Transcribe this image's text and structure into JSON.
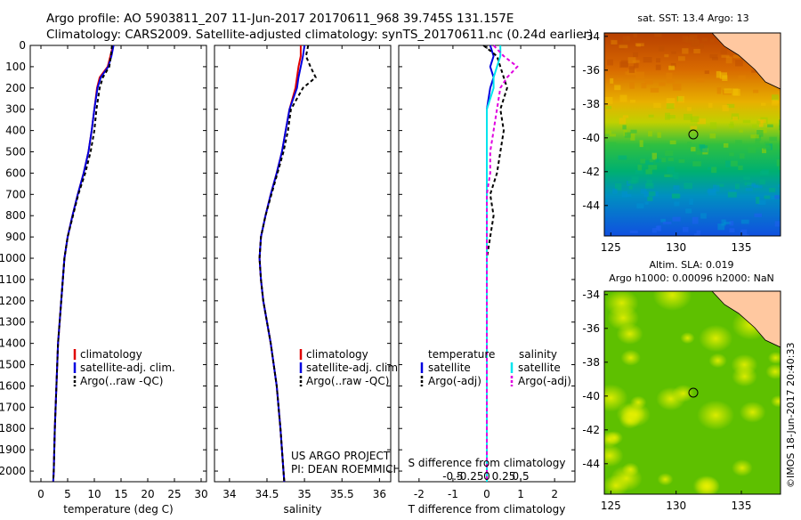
{
  "header": {
    "line1": "Argo profile: AO 5903811_207 11-Jun-2017 20170611_968 39.745S 131.157E",
    "line2": "Climatology: CARS2009. Satellite-adjusted climatology: synTS_20170611.nc (0.24d earlier)"
  },
  "colors": {
    "climatology": "#e00000",
    "satellite": "#0000e0",
    "argo": "#000000",
    "satellite_salinity": "#00e5ee",
    "argo_salinity": "#e000e0"
  },
  "chart_data": [
    {
      "type": "line",
      "name": "temperature-profile",
      "xlabel": "temperature (deg C)",
      "ylabel": "",
      "xlim": [
        -2,
        31
      ],
      "ylim": [
        2050,
        0
      ],
      "xticks": [
        0,
        5,
        10,
        15,
        20,
        25,
        30
      ],
      "yticks": [
        0,
        100,
        200,
        300,
        400,
        500,
        600,
        700,
        800,
        900,
        1000,
        1100,
        1200,
        1300,
        1400,
        1500,
        1600,
        1700,
        1800,
        1900,
        2000
      ],
      "depth": [
        0,
        50,
        100,
        150,
        200,
        300,
        400,
        500,
        600,
        700,
        800,
        900,
        1000,
        1200,
        1400,
        1600,
        1800,
        2000,
        2050
      ],
      "series": [
        {
          "name": "climatology",
          "values": [
            13.5,
            13.0,
            12.5,
            11.0,
            10.5,
            10.0,
            9.5,
            8.9,
            8.0,
            6.9,
            5.9,
            5.0,
            4.4,
            3.8,
            3.2,
            2.9,
            2.6,
            2.4,
            2.3
          ]
        },
        {
          "name": "satellite-adj. clim.",
          "values": [
            13.6,
            13.2,
            12.6,
            11.2,
            10.6,
            10.0,
            9.5,
            8.9,
            8.0,
            6.9,
            5.9,
            5.0,
            4.4,
            3.8,
            3.2,
            2.9,
            2.6,
            2.4,
            2.3
          ]
        },
        {
          "name": "Argo(..raw -QC)",
          "values": [
            13.3,
            13.1,
            12.8,
            11.6,
            11.0,
            10.4,
            10.0,
            9.3,
            8.3,
            7.0,
            6.0,
            5.0,
            4.4,
            3.8,
            3.2,
            2.9,
            2.6,
            2.4,
            2.3
          ]
        }
      ],
      "legend": [
        "climatology",
        "satellite-adj. clim.",
        "Argo(..raw -QC)"
      ]
    },
    {
      "type": "line",
      "name": "salinity-profile",
      "xlabel": "salinity",
      "ylabel": "",
      "xlim": [
        33.8,
        36.15
      ],
      "ylim": [
        2050,
        0
      ],
      "xticks": [
        34,
        34.5,
        35,
        35.5,
        36
      ],
      "depth": [
        0,
        50,
        100,
        150,
        200,
        300,
        400,
        500,
        600,
        700,
        800,
        900,
        1000,
        1100,
        1200,
        1400,
        1600,
        1800,
        2000,
        2050
      ],
      "series": [
        {
          "name": "climatology",
          "values": [
            34.95,
            34.95,
            34.92,
            34.9,
            34.88,
            34.8,
            34.75,
            34.7,
            34.63,
            34.55,
            34.48,
            34.42,
            34.4,
            34.42,
            34.45,
            34.55,
            34.63,
            34.68,
            34.72,
            34.73
          ]
        },
        {
          "name": "satellite-adj. clim.",
          "values": [
            35.0,
            34.98,
            34.95,
            34.92,
            34.9,
            34.8,
            34.75,
            34.7,
            34.63,
            34.55,
            34.48,
            34.42,
            34.4,
            34.42,
            34.45,
            34.55,
            34.63,
            34.68,
            34.72,
            34.73
          ]
        },
        {
          "name": "Argo(..raw -QC)",
          "values": [
            35.05,
            35.02,
            35.08,
            35.15,
            34.98,
            34.82,
            34.78,
            34.72,
            34.64,
            34.56,
            34.48,
            34.42,
            34.4,
            34.42,
            34.45,
            34.55,
            34.63,
            34.68,
            34.72,
            34.73
          ]
        }
      ],
      "legend": [
        "climatology",
        "satellite-adj. clim.",
        "Argo(..raw -QC)"
      ],
      "annotation": [
        "US ARGO PROJECT",
        "PI: DEAN ROEMMICH"
      ]
    },
    {
      "type": "line",
      "name": "difference-profile",
      "xlabel": "T difference from climatology",
      "top_label": "S difference from climatology",
      "xlim": [
        -2.6,
        2.6
      ],
      "ylim": [
        2050,
        0
      ],
      "xticks": [
        -2,
        -1,
        0,
        1,
        2
      ],
      "s_ticks": [
        "-0.5",
        "-0.25",
        "0",
        "0.25",
        "0.5"
      ],
      "depth": [
        0,
        50,
        100,
        150,
        200,
        300,
        400,
        500,
        600,
        700,
        800,
        900,
        1000,
        1200,
        1400,
        1600,
        1800,
        2000,
        2050
      ],
      "series": [
        {
          "name": "temperature satellite",
          "values": [
            0.1,
            0.2,
            0.1,
            0.2,
            0.1,
            0.0,
            0.0,
            0.0,
            0.0,
            0.0,
            0.0,
            0.0,
            0.0,
            0.0,
            0.0,
            0.0,
            0.0,
            0.0,
            0.0
          ]
        },
        {
          "name": "temperature Argo(-adj)",
          "values": [
            -0.1,
            0.3,
            0.4,
            0.5,
            0.6,
            0.4,
            0.5,
            0.4,
            0.3,
            0.1,
            0.2,
            0.1,
            0.0,
            0.0,
            0.0,
            0.0,
            0.0,
            0.0,
            0.0
          ]
        },
        {
          "name": "salinity satellite",
          "values": [
            0.4,
            0.4,
            0.3,
            0.2,
            0.2,
            0.0,
            0.0,
            0.0,
            0.0,
            0.0,
            0.0,
            0.0,
            0.0,
            0.0,
            0.0,
            0.0,
            0.0,
            0.0,
            0.0
          ]
        },
        {
          "name": "salinity Argo(-adj)",
          "values": [
            0.2,
            0.5,
            0.9,
            0.6,
            0.4,
            0.3,
            0.2,
            0.1,
            0.1,
            0.0,
            0.0,
            0.0,
            0.0,
            0.0,
            0.0,
            0.0,
            0.0,
            0.0,
            0.0
          ]
        }
      ],
      "legend_headers": [
        "temperature",
        "salinity"
      ],
      "legend": [
        "satellite",
        "Argo(-adj)",
        "satellite",
        "Argo(-adj)"
      ]
    },
    {
      "type": "heatmap",
      "name": "sst-map",
      "title": "sat. SST: 13.4 Argo: 13",
      "xlim": [
        124.5,
        138
      ],
      "ylim": [
        -45.8,
        -33.8
      ],
      "xticks": [
        125,
        130,
        135
      ],
      "yticks": [
        -34,
        -36,
        -38,
        -40,
        -42,
        -44
      ],
      "marker": {
        "lon": 131.157,
        "lat": -39.745
      }
    },
    {
      "type": "heatmap",
      "name": "sla-map",
      "title": "Altim. SLA: 0.019",
      "subtitle": "Argo h1000: 0.00096 h2000: NaN",
      "xlim": [
        124.5,
        138
      ],
      "ylim": [
        -45.8,
        -33.8
      ],
      "xticks": [
        125,
        130,
        135
      ],
      "yticks": [
        -34,
        -36,
        -38,
        -40,
        -42,
        -44
      ],
      "marker": {
        "lon": 131.157,
        "lat": -39.745
      }
    }
  ],
  "credit": "©IMOS 18-Jun-2017 20:40:33"
}
